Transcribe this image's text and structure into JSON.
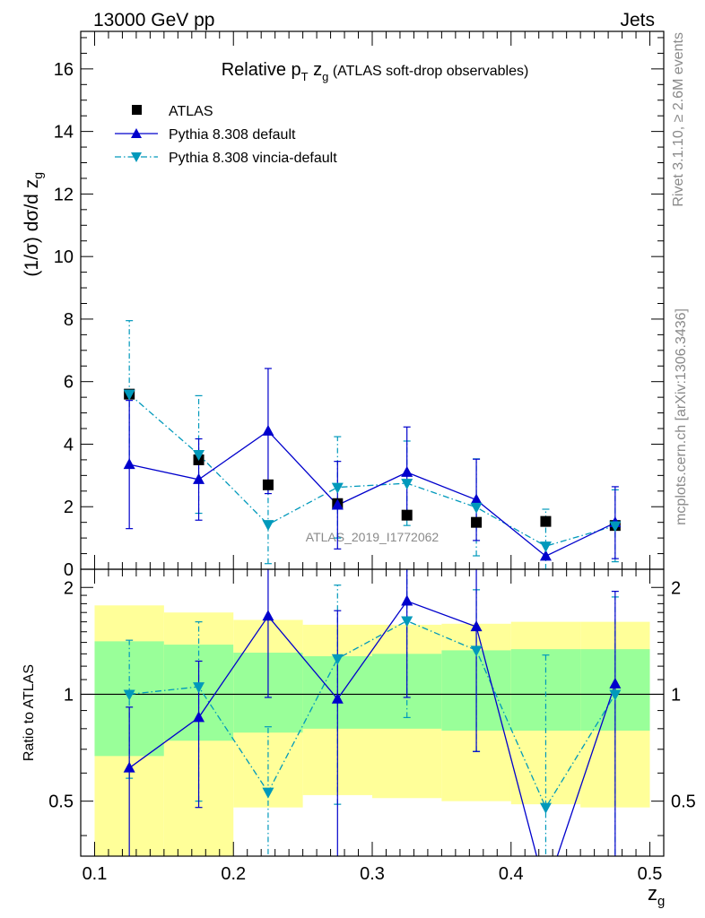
{
  "header": {
    "left": "13000 GeV pp",
    "right": "Jets"
  },
  "side_labels": {
    "rivet": "Rivet 3.1.10, ≥ 2.6M events",
    "mcplots": "mcplots.cern.ch [arXiv:1306.3436]"
  },
  "watermark": "ATLAS_2019_I1772062",
  "colors": {
    "atlas": "#000000",
    "pythia_default": "#0000cc",
    "pythia_vincia": "#0099bb",
    "band_yellow": "#ffff99",
    "band_green": "#99ff99"
  },
  "chart_data": [
    {
      "type": "scatter",
      "title_parts": {
        "main": "Relative p",
        "sub": "T",
        "mid": " z",
        "sub2": "g",
        "rest": " (ATLAS soft-drop observables)"
      },
      "ylabel_parts": {
        "main": "(1/σ) dσ/d z",
        "sub": "g"
      },
      "xlim": [
        0.09,
        0.51
      ],
      "ylim": [
        0,
        17.2
      ],
      "yticks": [
        0,
        2,
        4,
        6,
        8,
        10,
        12,
        14,
        16
      ],
      "legend_placement": "top-left",
      "x": [
        0.125,
        0.175,
        0.225,
        0.275,
        0.325,
        0.375,
        0.425,
        0.475
      ],
      "series": [
        {
          "name": "ATLAS",
          "style": "marker-square",
          "values": [
            5.6,
            3.5,
            2.7,
            2.1,
            1.73,
            1.5,
            1.53,
            1.4
          ],
          "err": [
            0,
            0,
            0,
            0,
            0,
            0,
            0,
            0
          ]
        },
        {
          "name": "Pythia 8.308 default",
          "style": "solid-triangle-up",
          "values": [
            3.35,
            2.87,
            4.42,
            2.05,
            3.1,
            2.22,
            0.42,
            1.49
          ],
          "err": [
            2.05,
            1.3,
            2.0,
            1.4,
            1.45,
            1.3,
            0.0,
            1.15
          ]
        },
        {
          "name": "Pythia 8.308 vincia-default",
          "style": "dashdot-triangle-down",
          "values": [
            5.6,
            3.67,
            1.43,
            2.62,
            2.75,
            1.98,
            0.74,
            1.39
          ],
          "err": [
            2.35,
            1.88,
            1.25,
            1.62,
            1.35,
            1.55,
            1.18,
            1.15
          ]
        }
      ]
    },
    {
      "type": "scatter",
      "ylabel": "Ratio to ATLAS",
      "xlabel_parts": {
        "main": "z",
        "sub": "g"
      },
      "xlim": [
        0.09,
        0.51
      ],
      "ylim": [
        0.35,
        2.25
      ],
      "yticks": [
        0.5,
        1,
        2
      ],
      "ytick_labels": [
        "0.5",
        "1",
        "2"
      ],
      "xticks": [
        0.1,
        0.2,
        0.3,
        0.4,
        0.5
      ],
      "xtick_labels": [
        "0.1",
        "0.2",
        "0.3",
        "0.4",
        "0.5"
      ],
      "bands": {
        "edges": [
          0.1,
          0.15,
          0.2,
          0.25,
          0.3,
          0.35,
          0.4,
          0.45,
          0.5
        ],
        "yellow_low": [
          0.33,
          0.33,
          0.48,
          0.52,
          0.51,
          0.5,
          0.49,
          0.48
        ],
        "yellow_high": [
          1.78,
          1.7,
          1.62,
          1.57,
          1.57,
          1.58,
          1.6,
          1.6
        ],
        "green_low": [
          0.67,
          0.74,
          0.78,
          0.8,
          0.8,
          0.79,
          0.79,
          0.79
        ],
        "green_high": [
          1.41,
          1.38,
          1.31,
          1.28,
          1.3,
          1.33,
          1.34,
          1.34
        ]
      },
      "series": [
        {
          "name": "Pythia 8.308 default",
          "values": [
            0.62,
            0.86,
            1.66,
            0.97,
            1.83,
            1.55,
            0.27,
            1.07
          ],
          "err_low": [
            0.3,
            0.38,
            0.68,
            0.63,
            0.85,
            0.86,
            0.0,
            0.75
          ],
          "err_high": [
            0.3,
            0.38,
            0.68,
            0.75,
            0.85,
            0.86,
            0.0,
            0.88
          ]
        },
        {
          "name": "Pythia 8.308 vincia-default",
          "values": [
            1.0,
            1.05,
            0.53,
            1.26,
            1.61,
            1.33,
            0.48,
            1.0
          ],
          "err_low": [
            0.42,
            0.55,
            0.28,
            0.77,
            0.75,
            0.64,
            0.3,
            0.75
          ],
          "err_high": [
            0.42,
            0.55,
            0.28,
            0.77,
            0.75,
            0.64,
            0.81,
            0.88
          ]
        }
      ]
    }
  ]
}
